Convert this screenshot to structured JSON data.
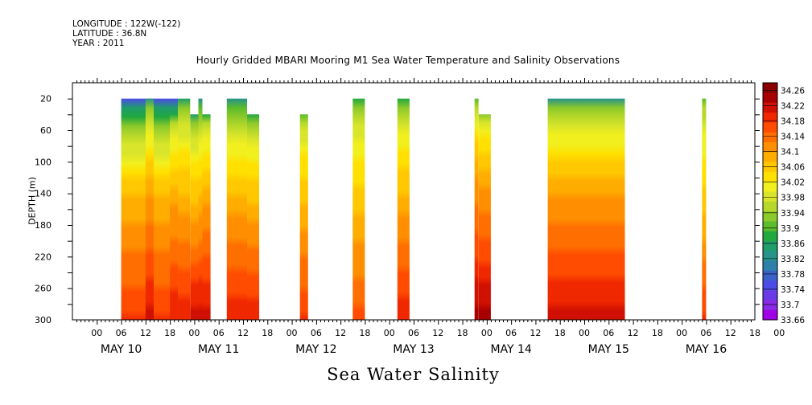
{
  "header": {
    "longitude": "LONGITUDE : 122W(-122)",
    "latitude": "LATITUDE : 36.8N",
    "year": "YEAR : 2011"
  },
  "chart_data": {
    "type": "heatmap",
    "title": "Hourly Gridded MBARI Mooring M1 Sea Water Temperature and Salinity Observations",
    "bottom_title": "Sea Water Salinity",
    "ylabel": "DEPTH (m)",
    "xlabel": "",
    "xlim_hours": [
      -6,
      162
    ],
    "ylim": [
      300,
      0
    ],
    "y_ticks": [
      20,
      60,
      100,
      140,
      180,
      220,
      260,
      300
    ],
    "x_hour_ticks": [
      "00",
      "06",
      "12",
      "18",
      "00",
      "06",
      "12",
      "18",
      "00",
      "06",
      "12",
      "18",
      "00",
      "06",
      "12",
      "18",
      "00",
      "06",
      "12",
      "18",
      "00",
      "06",
      "12",
      "18",
      "00",
      "06",
      "12",
      "18",
      "00"
    ],
    "day_labels": [
      "MAY 10",
      "MAY 11",
      "MAY 12",
      "MAY 13",
      "MAY 14",
      "MAY 15",
      "MAY 16"
    ],
    "colorbar_labels": [
      "34.26",
      "34.22",
      "34.18",
      "34.14",
      "34.1",
      "34.06",
      "34.02",
      "33.98",
      "33.94",
      "33.9",
      "33.86",
      "33.82",
      "33.78",
      "33.74",
      "33.7",
      "33.66"
    ],
    "colorbar_min": 33.66,
    "colorbar_max": 34.28,
    "colors": [
      "#a000e6",
      "#8a2be6",
      "#6a3ae6",
      "#4b4ce6",
      "#3a63c8",
      "#2f80a8",
      "#27938a",
      "#1f9d6a",
      "#22a83e",
      "#5cbc2a",
      "#8cc92a",
      "#b6d82a",
      "#d9e52a",
      "#f2ef1e",
      "#ffe000",
      "#ffc800",
      "#ffad00",
      "#ff8f00",
      "#ff6e00",
      "#ff4c00",
      "#f02800",
      "#d01000",
      "#a80000",
      "#8a0000"
    ],
    "series": [
      {
        "x_start": 6,
        "x_end": 20,
        "ztop": 20,
        "zbot": 300,
        "top": 33.74,
        "mid": 34.08,
        "bot": 34.18
      },
      {
        "x_start": 20,
        "x_end": 22,
        "ztop": 40,
        "zbot": 300,
        "top": 33.9,
        "mid": 34.1,
        "bot": 34.2
      },
      {
        "x_start": 12,
        "x_end": 14,
        "ztop": 20,
        "zbot": 300,
        "top": 33.84,
        "mid": 34.1,
        "bot": 34.22
      },
      {
        "x_start": 18,
        "x_end": 20,
        "ztop": 40,
        "zbot": 300,
        "top": 33.88,
        "mid": 34.1,
        "bot": 34.2
      },
      {
        "x_start": 20,
        "x_end": 23,
        "ztop": 20,
        "zbot": 300,
        "top": 33.86,
        "mid": 34.08,
        "bot": 34.2
      },
      {
        "x_start": 23,
        "x_end": 25,
        "ztop": 40,
        "zbot": 300,
        "top": 33.86,
        "mid": 34.08,
        "bot": 34.22
      },
      {
        "x_start": 25,
        "x_end": 26,
        "ztop": 20,
        "zbot": 300,
        "top": 33.84,
        "mid": 34.08,
        "bot": 34.22
      },
      {
        "x_start": 26,
        "x_end": 28,
        "ztop": 40,
        "zbot": 300,
        "top": 33.88,
        "mid": 34.1,
        "bot": 34.22
      },
      {
        "x_start": 32,
        "x_end": 37,
        "ztop": 20,
        "zbot": 300,
        "top": 33.84,
        "mid": 34.08,
        "bot": 34.2
      },
      {
        "x_start": 37,
        "x_end": 40,
        "ztop": 40,
        "zbot": 300,
        "top": 33.88,
        "mid": 34.08,
        "bot": 34.2
      },
      {
        "x_start": 50,
        "x_end": 52,
        "ztop": 40,
        "zbot": 300,
        "top": 33.9,
        "mid": 34.08,
        "bot": 34.18
      },
      {
        "x_start": 63,
        "x_end": 66,
        "ztop": 20,
        "zbot": 300,
        "top": 33.88,
        "mid": 34.06,
        "bot": 34.16
      },
      {
        "x_start": 74,
        "x_end": 77,
        "ztop": 20,
        "zbot": 300,
        "top": 33.88,
        "mid": 34.08,
        "bot": 34.2
      },
      {
        "x_start": 93,
        "x_end": 94,
        "ztop": 20,
        "zbot": 300,
        "top": 33.9,
        "mid": 34.12,
        "bot": 34.24
      },
      {
        "x_start": 94,
        "x_end": 97,
        "ztop": 40,
        "zbot": 300,
        "top": 33.92,
        "mid": 34.12,
        "bot": 34.24
      },
      {
        "x_start": 111,
        "x_end": 130,
        "ztop": 20,
        "zbot": 300,
        "top": 33.84,
        "mid": 34.1,
        "bot": 34.22
      },
      {
        "x_start": 149,
        "x_end": 150,
        "ztop": 20,
        "zbot": 300,
        "top": 33.9,
        "mid": 34.06,
        "bot": 34.18
      }
    ]
  }
}
